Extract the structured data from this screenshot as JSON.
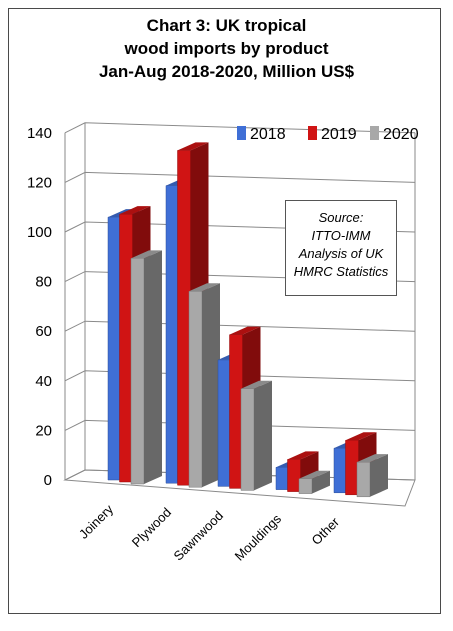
{
  "title_lines": [
    "Chart 3: UK tropical",
    "wood imports by product",
    "Jan-Aug 2018-2020, Million US$"
  ],
  "source_lines": [
    "Source:",
    "ITTO-IMM",
    "Analysis of UK",
    "HMRC Statistics"
  ],
  "colors": {
    "2018": "#3f6fd6",
    "2019": "#d01414",
    "2020": "#a8a8a8"
  },
  "chart_data": {
    "type": "bar",
    "title": "Chart 3: UK tropical wood imports by product Jan-Aug 2018-2020, Million US$",
    "categories": [
      "Joinery",
      "Plywood",
      "Sawnwood",
      "Mouldings",
      "Other"
    ],
    "series": [
      {
        "name": "2018",
        "values": [
          106,
          120,
          51,
          9,
          18
        ]
      },
      {
        "name": "2019",
        "values": [
          108,
          135,
          62,
          13,
          22
        ]
      },
      {
        "name": "2020",
        "values": [
          91,
          79,
          41,
          6,
          14
        ]
      }
    ],
    "ylim": [
      0,
      140
    ],
    "yticks": [
      0,
      20,
      40,
      60,
      80,
      100,
      120,
      140
    ],
    "grid": true,
    "legend": "top-right",
    "xlabel": "",
    "ylabel": ""
  }
}
